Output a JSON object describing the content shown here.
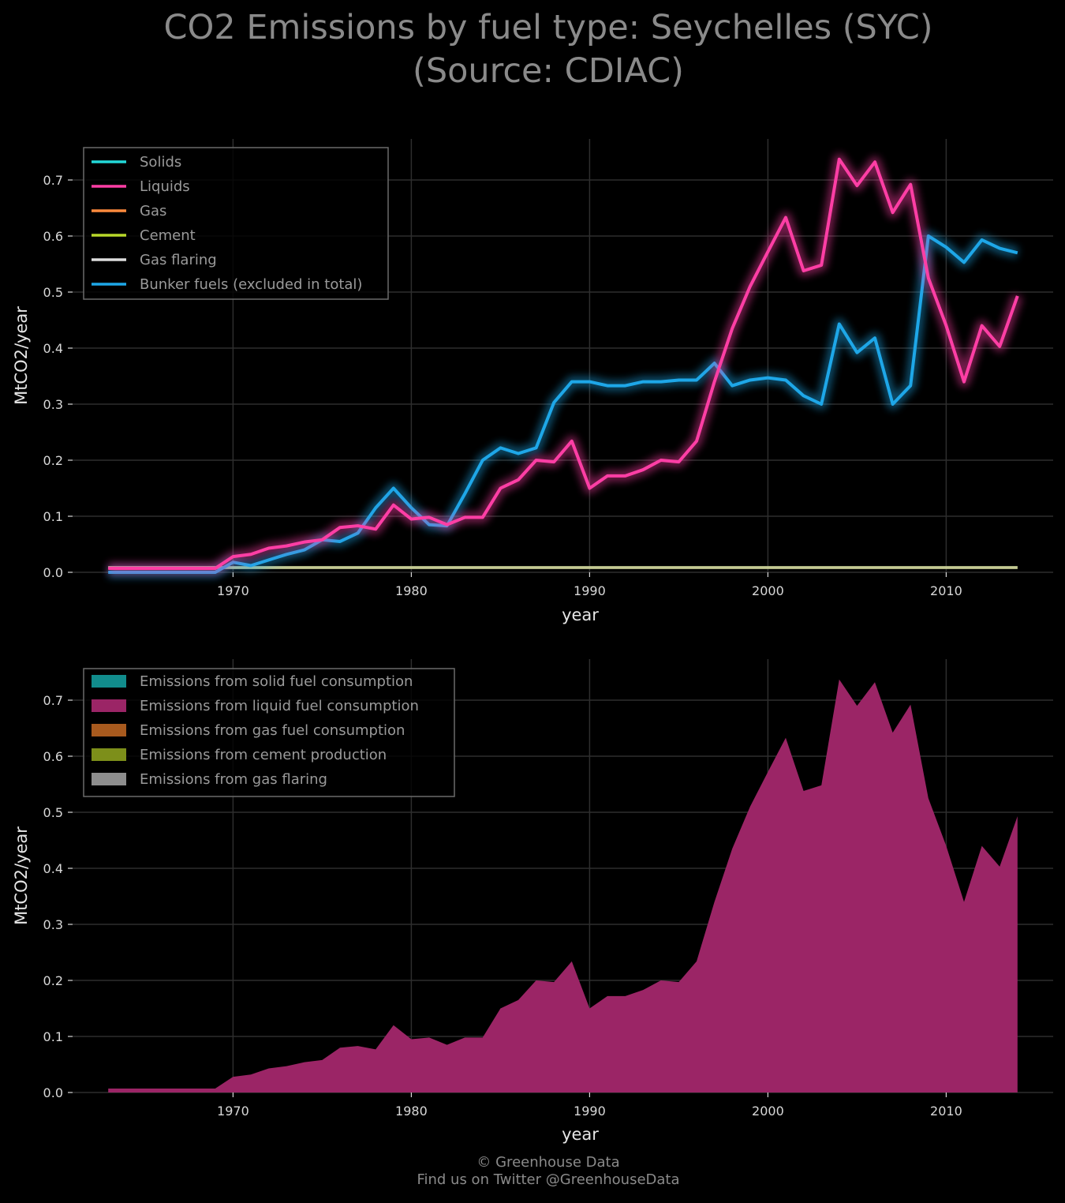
{
  "title": {
    "line1": "CO2 Emissions by fuel type: Seychelles (SYC)",
    "line2": "(Source: CDIAC)"
  },
  "footer": {
    "line1": "© Greenhouse Data",
    "line2": "Find us on Twitter @GreenhouseData"
  },
  "colors": {
    "background": "#000000",
    "solids": "#22d8d8",
    "liquids": "#ff3ea5",
    "gas": "#ff8a3d",
    "cement": "#b8d82a",
    "gas_flaring": "#dddddd",
    "bunker": "#1ea7e8",
    "area_solid": "#118c8c",
    "area_liquid": "#9b2566",
    "area_gas": "#a85a1e",
    "area_cement": "#7d8f1a",
    "area_flaring": "#8e8e8e"
  },
  "chart_data": [
    {
      "type": "line",
      "xlabel": "year",
      "ylabel": "MtCO2/year",
      "xlim": [
        1961,
        2016
      ],
      "ylim": [
        0,
        0.77
      ],
      "xticks": [
        1970,
        1980,
        1990,
        2000,
        2010
      ],
      "yticks": [
        "0.0",
        "0.1",
        "0.2",
        "0.3",
        "0.4",
        "0.5",
        "0.6",
        "0.7"
      ],
      "grid": true,
      "legend_position": "top-left",
      "x": [
        1963,
        1964,
        1965,
        1966,
        1967,
        1968,
        1969,
        1970,
        1971,
        1972,
        1973,
        1974,
        1975,
        1976,
        1977,
        1978,
        1979,
        1980,
        1981,
        1982,
        1983,
        1984,
        1985,
        1986,
        1987,
        1988,
        1989,
        1990,
        1991,
        1992,
        1993,
        1994,
        1995,
        1996,
        1997,
        1998,
        1999,
        2000,
        2001,
        2002,
        2003,
        2004,
        2005,
        2006,
        2007,
        2008,
        2009,
        2010,
        2011,
        2012,
        2013,
        2014
      ],
      "series": [
        {
          "name": "Solids",
          "color_key": "solids",
          "values": [
            0,
            0,
            0,
            0,
            0,
            0,
            0,
            0,
            0,
            0,
            0,
            0,
            0,
            0,
            0,
            0,
            0,
            0,
            0,
            0,
            0,
            0,
            0,
            0,
            0,
            0,
            0,
            0,
            0,
            0,
            0,
            0,
            0,
            0,
            0,
            0,
            0,
            0,
            0,
            0,
            0,
            0,
            0,
            0,
            0,
            0,
            0,
            0,
            0,
            0,
            0,
            0
          ]
        },
        {
          "name": "Liquids",
          "color_key": "liquids",
          "values": [
            0.007,
            0.007,
            0.007,
            0.007,
            0.007,
            0.007,
            0.007,
            0.028,
            0.032,
            0.043,
            0.047,
            0.054,
            0.058,
            0.08,
            0.083,
            0.077,
            0.12,
            0.095,
            0.098,
            0.085,
            0.098,
            0.098,
            0.15,
            0.165,
            0.2,
            0.197,
            0.234,
            0.15,
            0.172,
            0.172,
            0.183,
            0.2,
            0.197,
            0.234,
            0.34,
            0.435,
            0.51,
            0.572,
            0.633,
            0.538,
            0.548,
            0.737,
            0.69,
            0.732,
            0.642,
            0.692,
            0.525,
            0.44,
            0.34,
            0.44,
            0.403,
            0.493
          ]
        },
        {
          "name": "Gas",
          "color_key": "gas",
          "values": [
            0,
            0,
            0,
            0,
            0,
            0,
            0,
            0,
            0,
            0,
            0,
            0,
            0,
            0,
            0,
            0,
            0,
            0,
            0,
            0,
            0,
            0,
            0,
            0,
            0,
            0,
            0,
            0,
            0,
            0,
            0,
            0,
            0,
            0,
            0,
            0,
            0,
            0,
            0,
            0,
            0,
            0,
            0,
            0,
            0,
            0,
            0,
            0,
            0,
            0,
            0,
            0
          ]
        },
        {
          "name": "Cement",
          "color_key": "cement",
          "values": [
            0,
            0,
            0,
            0,
            0,
            0,
            0,
            0,
            0,
            0,
            0,
            0,
            0,
            0,
            0,
            0,
            0,
            0,
            0,
            0,
            0,
            0,
            0,
            0,
            0,
            0,
            0,
            0,
            0,
            0,
            0,
            0,
            0,
            0,
            0,
            0,
            0,
            0,
            0,
            0,
            0,
            0,
            0,
            0,
            0,
            0,
            0,
            0,
            0,
            0,
            0,
            0
          ]
        },
        {
          "name": "Gas flaring",
          "color_key": "gas_flaring",
          "values": [
            0,
            0,
            0,
            0,
            0,
            0,
            0,
            0,
            0,
            0,
            0,
            0,
            0,
            0,
            0,
            0,
            0,
            0,
            0,
            0,
            0,
            0,
            0,
            0,
            0,
            0,
            0,
            0,
            0,
            0,
            0,
            0,
            0,
            0,
            0,
            0,
            0,
            0,
            0,
            0,
            0,
            0,
            0,
            0,
            0,
            0,
            0,
            0,
            0,
            0,
            0,
            0
          ]
        },
        {
          "name": "Bunker fuels (excluded in total)",
          "color_key": "bunker",
          "values": [
            0,
            0,
            0,
            0,
            0,
            0,
            0,
            0.018,
            0.012,
            0.022,
            0.032,
            0.04,
            0.058,
            0.055,
            0.07,
            0.115,
            0.15,
            0.115,
            0.085,
            0.083,
            0.14,
            0.2,
            0.222,
            0.212,
            0.222,
            0.303,
            0.34,
            0.34,
            0.333,
            0.333,
            0.34,
            0.34,
            0.343,
            0.343,
            0.373,
            0.333,
            0.343,
            0.347,
            0.343,
            0.315,
            0.3,
            0.443,
            0.392,
            0.418,
            0.3,
            0.333,
            0.6,
            0.58,
            0.553,
            0.593,
            0.578,
            0.57
          ]
        }
      ]
    },
    {
      "type": "area",
      "xlabel": "year",
      "ylabel": "MtCO2/year",
      "xlim": [
        1961,
        2016
      ],
      "ylim": [
        0,
        0.77
      ],
      "xticks": [
        1970,
        1980,
        1990,
        2000,
        2010
      ],
      "yticks": [
        "0.0",
        "0.1",
        "0.2",
        "0.3",
        "0.4",
        "0.5",
        "0.6",
        "0.7"
      ],
      "grid": true,
      "legend_position": "top-left",
      "stacked": true,
      "series": [
        {
          "name": "Emissions from solid fuel consumption",
          "color_key": "area_solid"
        },
        {
          "name": "Emissions from liquid fuel consumption",
          "color_key": "area_liquid"
        },
        {
          "name": "Emissions from gas fuel consumption",
          "color_key": "area_gas"
        },
        {
          "name": "Emissions from cement production",
          "color_key": "area_cement"
        },
        {
          "name": "Emissions from gas flaring",
          "color_key": "area_flaring"
        }
      ],
      "values_from": "same as line chart (Solids, Liquids, Gas, Cement, Gas flaring)"
    }
  ]
}
